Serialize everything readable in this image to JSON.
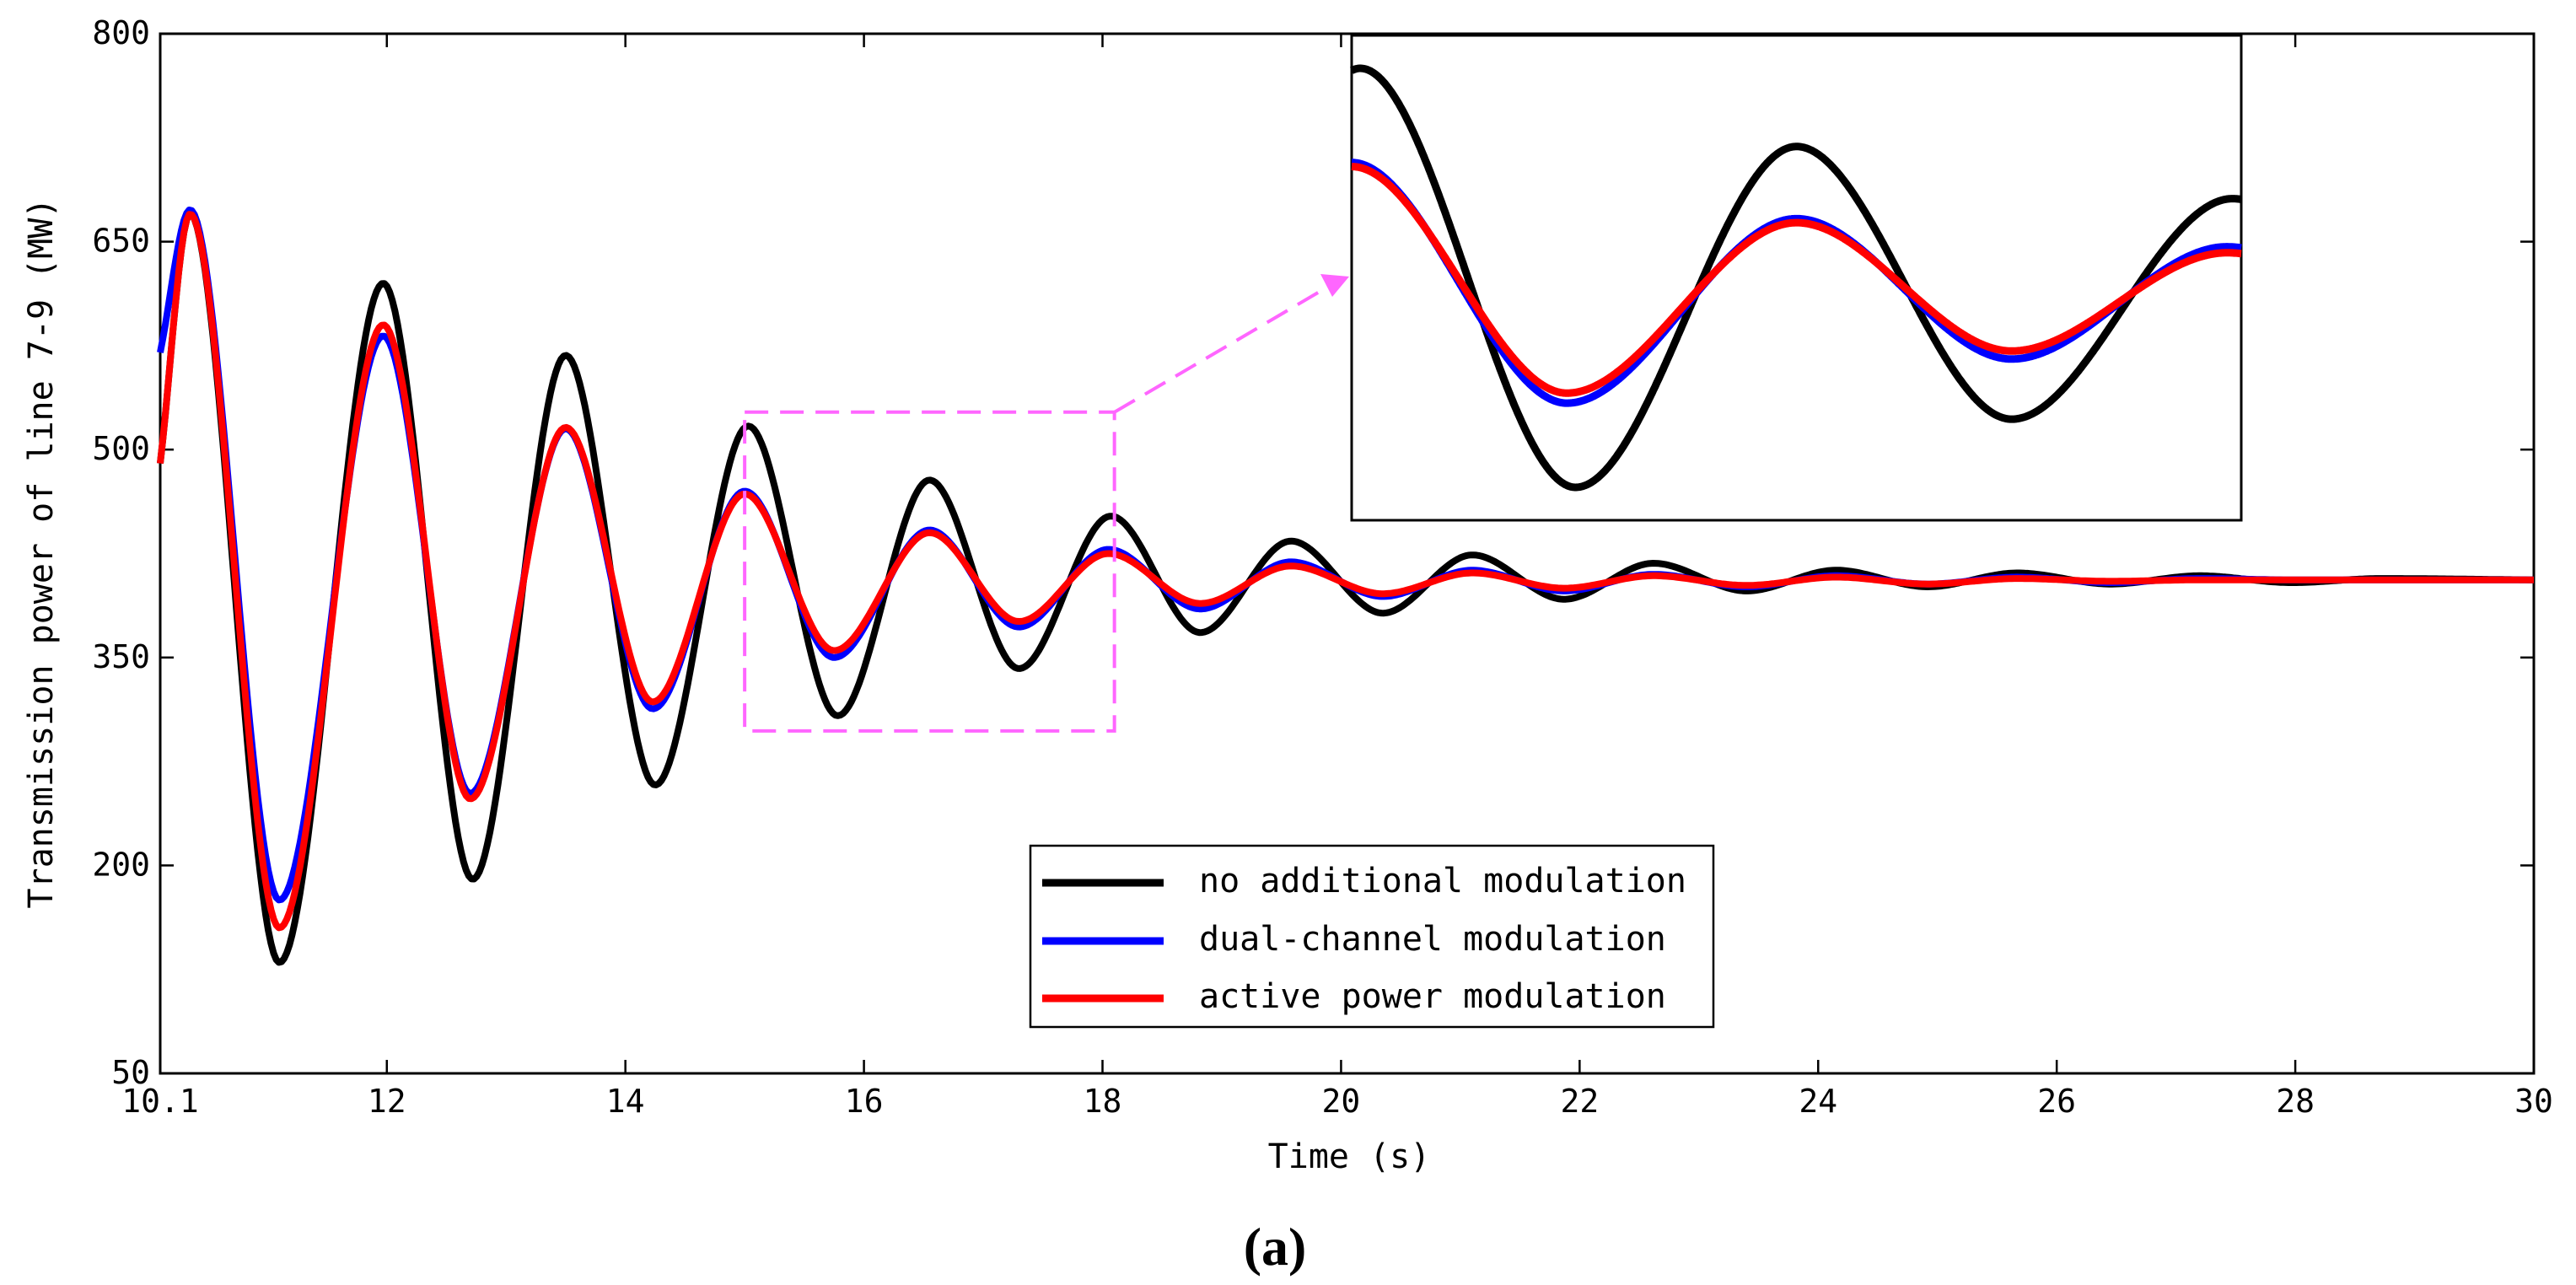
{
  "chart_data": {
    "type": "line",
    "title": "",
    "xlabel": "Time (s)",
    "ylabel": "Transmission power of line 7-9 (MW)",
    "caption": "(a)",
    "xlim": [
      10.1,
      30
    ],
    "ylim": [
      50,
      800
    ],
    "xticks": [
      10.1,
      12,
      14,
      16,
      18,
      20,
      22,
      24,
      26,
      28,
      30
    ],
    "xtick_labels": [
      "10.1",
      "12",
      "14",
      "16",
      "18",
      "20",
      "22",
      "24",
      "26",
      "28",
      "30"
    ],
    "yticks": [
      50,
      200,
      350,
      500,
      650,
      800
    ],
    "ytick_labels": [
      "50",
      "200",
      "350",
      "500",
      "650",
      "800"
    ],
    "legend_position": "bottom-center",
    "series": [
      {
        "name": "no additional modulation",
        "color": "#000000",
        "x": [
          10.1,
          10.35,
          11.1,
          11.97,
          12.72,
          13.5,
          14.25,
          15.03,
          15.78,
          16.55,
          17.3,
          18.07,
          18.82,
          19.58,
          20.35,
          21.1,
          21.87,
          22.62,
          23.4,
          24.15,
          24.92,
          25.67,
          26.45,
          27.2,
          27.97,
          28.72,
          30.0
        ],
        "y": [
          490,
          670,
          130,
          620,
          190,
          568,
          258,
          517,
          308,
          478,
          342,
          452,
          368,
          434,
          382,
          424,
          392,
          418,
          398,
          413,
          401,
          411,
          403,
          409,
          404,
          407,
          406
        ]
      },
      {
        "name": "dual-channel modulation",
        "color": "#0000ff",
        "x": [
          10.1,
          10.35,
          11.1,
          11.97,
          12.7,
          13.5,
          14.23,
          15.0,
          15.75,
          16.55,
          17.3,
          18.05,
          18.82,
          19.58,
          20.35,
          21.1,
          21.87,
          22.62,
          23.4,
          24.15,
          24.92,
          25.67,
          26.45,
          27.2,
          28.0,
          30.0
        ],
        "y": [
          570,
          673,
          175,
          582,
          252,
          515,
          313,
          470,
          350,
          442,
          372,
          428,
          385,
          419,
          394,
          413,
          398,
          410,
          401,
          409,
          403,
          408,
          404,
          407,
          406,
          406
        ]
      },
      {
        "name": "active power modulation",
        "color": "#ff0000",
        "x": [
          10.1,
          10.35,
          11.1,
          11.97,
          12.7,
          13.5,
          14.23,
          15.0,
          15.75,
          16.55,
          17.3,
          18.05,
          18.82,
          19.58,
          20.35,
          21.1,
          21.87,
          22.62,
          23.4,
          24.15,
          24.92,
          25.67,
          26.45,
          27.2,
          28.0,
          30.0
        ],
        "y": [
          490,
          670,
          155,
          590,
          248,
          516,
          318,
          468,
          355,
          440,
          376,
          425,
          389,
          416,
          396,
          411,
          400,
          409,
          402,
          408,
          403,
          407,
          405,
          406,
          406,
          406
        ]
      }
    ],
    "zoom_region": {
      "xlim": [
        15.0,
        18.1
      ],
      "ylim": [
        297,
        527
      ]
    }
  }
}
